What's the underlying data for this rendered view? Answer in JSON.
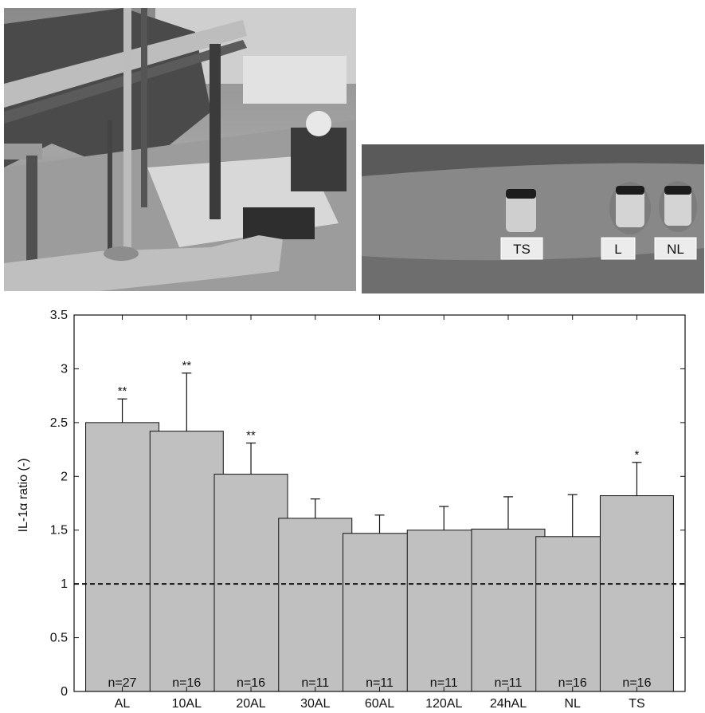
{
  "photos": {
    "arm_labels": [
      "TS",
      "L",
      "NL"
    ]
  },
  "chart_data": {
    "type": "bar",
    "title": "",
    "xlabel": "",
    "ylabel": "IL-1α ratio (-)",
    "ylim": [
      0,
      3.5
    ],
    "yticks": [
      "0",
      "0.5",
      "1",
      "1.5",
      "2",
      "2.5",
      "3",
      "3.5"
    ],
    "categories": [
      "AL",
      "10AL",
      "20AL",
      "30AL",
      "60AL",
      "120AL",
      "24hAL",
      "NL",
      "TS"
    ],
    "values": [
      2.5,
      2.42,
      2.02,
      1.61,
      1.47,
      1.5,
      1.51,
      1.44,
      1.82
    ],
    "error_upper": [
      2.72,
      2.96,
      2.31,
      1.79,
      1.64,
      1.72,
      1.81,
      1.83,
      2.13
    ],
    "n_labels": [
      "n=27",
      "n=16",
      "n=16",
      "n=11",
      "n=11",
      "n=11",
      "n=11",
      "n=16",
      "n=16"
    ],
    "significance": [
      "**",
      "**",
      "**",
      "",
      "",
      "",
      "",
      "",
      "*"
    ],
    "reference_line": 1,
    "bar_color": "#c0c0c0",
    "grid": false
  }
}
